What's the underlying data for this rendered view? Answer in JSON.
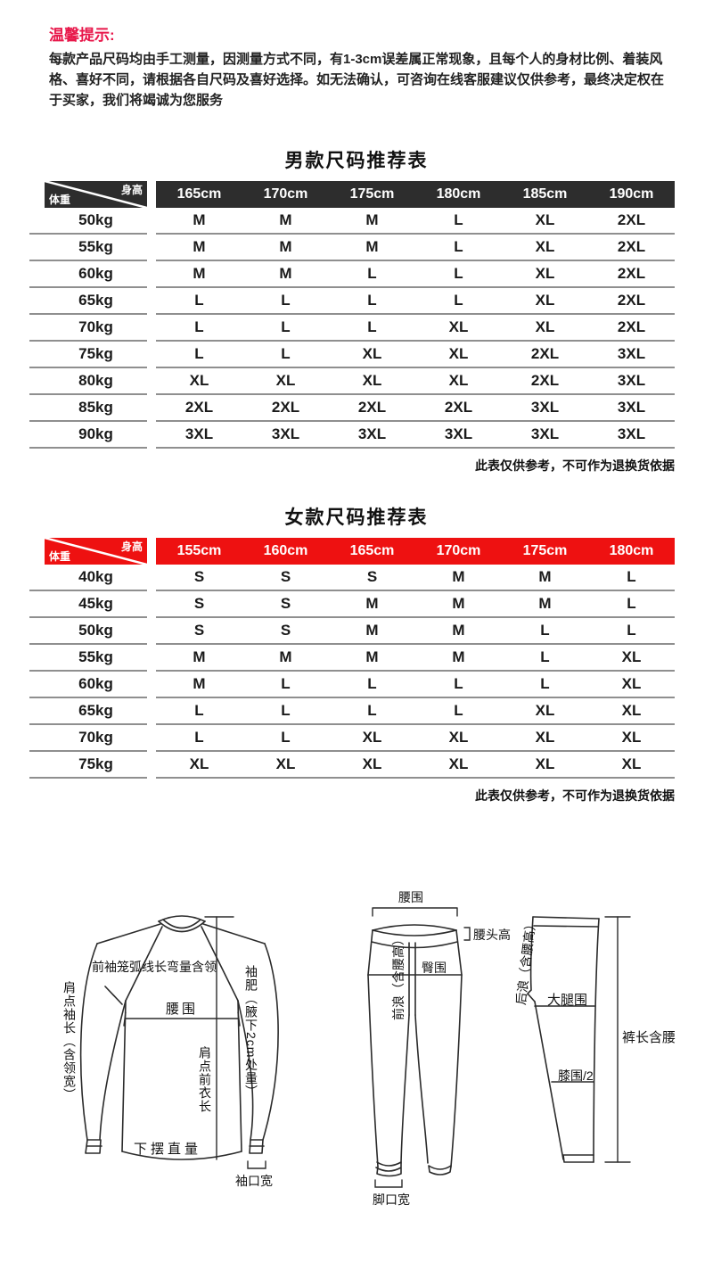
{
  "colors": {
    "men_header": "#2d2d2d",
    "women_header": "#ee1111",
    "tips_red": "#e8174a",
    "line_gray": "#8f8f8f"
  },
  "tips": {
    "title": "温馨提示:",
    "body": "每款产品尺码均由手工测量，因测量方式不同，有1-3cm误差属正常现象，且每个人的身材比例、着装风格、喜好不同，请根据各自尺码及喜好选择。如无法确认，可咨询在线客服建议仅供参考，最终决定权在于买家，我们将竭诚为您服务"
  },
  "men_table": {
    "title": "男款尺码推荐表",
    "corner": {
      "top_right": "身高",
      "bottom_left": "体重"
    },
    "columns": [
      "165cm",
      "170cm",
      "175cm",
      "180cm",
      "185cm",
      "190cm"
    ],
    "rows": [
      {
        "weight": "50kg",
        "sizes": [
          "M",
          "M",
          "M",
          "L",
          "XL",
          "2XL"
        ]
      },
      {
        "weight": "55kg",
        "sizes": [
          "M",
          "M",
          "M",
          "L",
          "XL",
          "2XL"
        ]
      },
      {
        "weight": "60kg",
        "sizes": [
          "M",
          "M",
          "L",
          "L",
          "XL",
          "2XL"
        ]
      },
      {
        "weight": "65kg",
        "sizes": [
          "L",
          "L",
          "L",
          "L",
          "XL",
          "2XL"
        ]
      },
      {
        "weight": "70kg",
        "sizes": [
          "L",
          "L",
          "L",
          "XL",
          "XL",
          "2XL"
        ]
      },
      {
        "weight": "75kg",
        "sizes": [
          "L",
          "L",
          "XL",
          "XL",
          "2XL",
          "3XL"
        ]
      },
      {
        "weight": "80kg",
        "sizes": [
          "XL",
          "XL",
          "XL",
          "XL",
          "2XL",
          "3XL"
        ]
      },
      {
        "weight": "85kg",
        "sizes": [
          "2XL",
          "2XL",
          "2XL",
          "2XL",
          "3XL",
          "3XL"
        ]
      },
      {
        "weight": "90kg",
        "sizes": [
          "3XL",
          "3XL",
          "3XL",
          "3XL",
          "3XL",
          "3XL"
        ]
      }
    ],
    "note": "此表仅供参考，不可作为退换货依据"
  },
  "women_table": {
    "title": "女款尺码推荐表",
    "corner": {
      "top_right": "身高",
      "bottom_left": "体重"
    },
    "columns": [
      "155cm",
      "160cm",
      "165cm",
      "170cm",
      "175cm",
      "180cm"
    ],
    "rows": [
      {
        "weight": "40kg",
        "sizes": [
          "S",
          "S",
          "S",
          "M",
          "M",
          "L"
        ]
      },
      {
        "weight": "45kg",
        "sizes": [
          "S",
          "S",
          "M",
          "M",
          "M",
          "L"
        ]
      },
      {
        "weight": "50kg",
        "sizes": [
          "S",
          "S",
          "M",
          "M",
          "L",
          "L"
        ]
      },
      {
        "weight": "55kg",
        "sizes": [
          "M",
          "M",
          "M",
          "M",
          "L",
          "XL"
        ]
      },
      {
        "weight": "60kg",
        "sizes": [
          "M",
          "L",
          "L",
          "L",
          "L",
          "XL"
        ]
      },
      {
        "weight": "65kg",
        "sizes": [
          "L",
          "L",
          "L",
          "L",
          "XL",
          "XL"
        ]
      },
      {
        "weight": "70kg",
        "sizes": [
          "L",
          "L",
          "XL",
          "XL",
          "XL",
          "XL"
        ]
      },
      {
        "weight": "75kg",
        "sizes": [
          "XL",
          "XL",
          "XL",
          "XL",
          "XL",
          "XL"
        ]
      }
    ],
    "note": "此表仅供参考，不可作为退换货依据"
  },
  "diagram": {
    "shirt": {
      "front_armhole": "前袖笼弧线长弯量含领",
      "shoulder_sleeve": "肩点袖长（含领宽）",
      "sleeve_width": "袖肥（腋下2cm处量）",
      "waist": "腰围",
      "front_length": "肩点前衣长",
      "hem": "下摆直量",
      "cuff": "袖口宽"
    },
    "pants_front": {
      "waist": "腰围",
      "waistband_height": "腰头高",
      "front_rise": "前浪（含腰高）",
      "hip": "臀围",
      "leg_opening": "脚口宽"
    },
    "pants_side": {
      "back_rise": "后浪（含腰高）",
      "thigh": "大腿围",
      "knee": "膝围/2",
      "length": "裤长含腰"
    }
  }
}
